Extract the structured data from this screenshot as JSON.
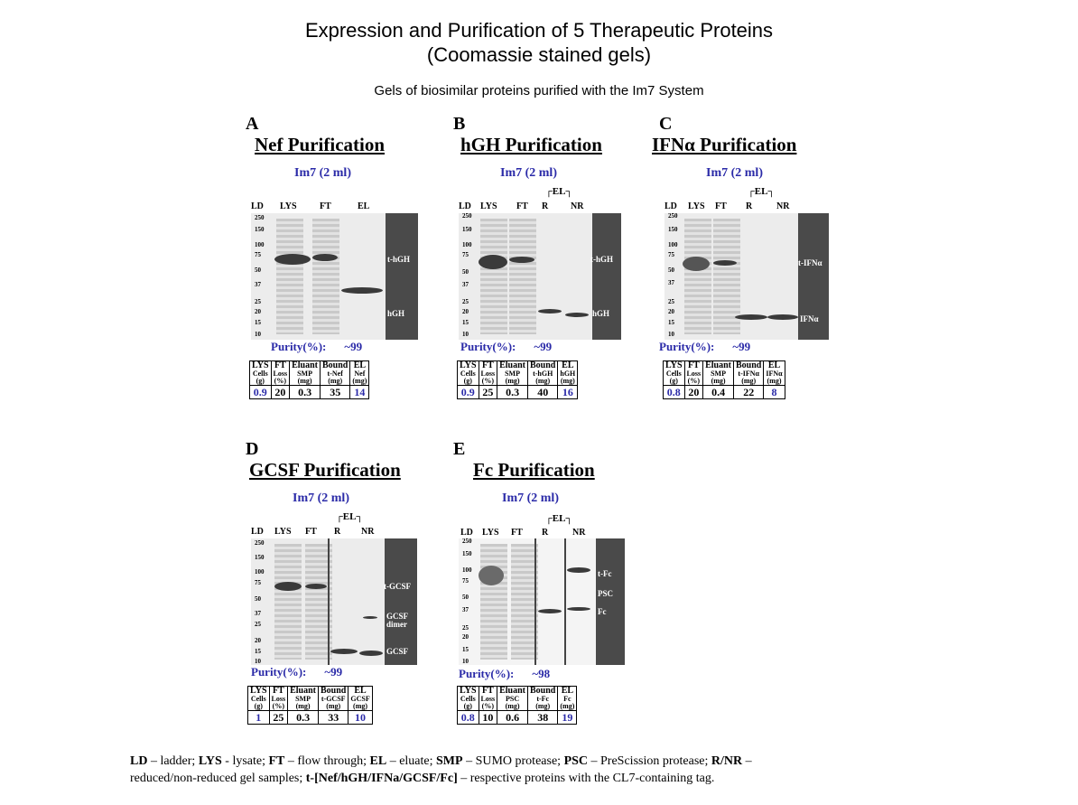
{
  "title": {
    "line1": "Expression and Purification of 5 Therapeutic Proteins",
    "line2": "(Coomassie stained gels)"
  },
  "subtitle": "Gels of biosimilar proteins purified with the Im7 System",
  "panels": [
    {
      "letter": "A",
      "title": "Nef Purification",
      "column": "Im7 (2 ml)",
      "lanes": [
        "LD",
        "LYS",
        "FT",
        "EL"
      ],
      "markers": [
        "250",
        "150",
        "100",
        "75",
        "50",
        "37",
        "25",
        "20",
        "15",
        "10"
      ],
      "band_labels": [
        "t-hGH",
        "hGH"
      ],
      "purity_label": "Purity(%):",
      "purity_value": "~99",
      "table": {
        "headers": [
          [
            "LYS",
            "Cells",
            "(g)"
          ],
          [
            "FT",
            "Loss",
            "(%)"
          ],
          [
            "Eluant",
            "SMP",
            "(mg)"
          ],
          [
            "Bound",
            "t-Nef",
            "(mg)"
          ],
          [
            "EL",
            "Nef",
            "(mg)"
          ]
        ],
        "values": [
          "0.9",
          "20",
          "0.3",
          "35",
          "14"
        ]
      }
    },
    {
      "letter": "B",
      "title": "hGH Purification",
      "column": "Im7 (2 ml)",
      "el_bracket": "┌EL┐",
      "lanes": [
        "LD",
        "LYS",
        "FT",
        "R",
        "NR"
      ],
      "markers": [
        "250",
        "150",
        "100",
        "75",
        "50",
        "37",
        "25",
        "20",
        "15",
        "10"
      ],
      "band_labels": [
        "t-hGH",
        "hGH"
      ],
      "purity_label": "Purity(%):",
      "purity_value": "~99",
      "table": {
        "headers": [
          [
            "LYS",
            "Cells",
            "(g)"
          ],
          [
            "FT",
            "Loss",
            "(%)"
          ],
          [
            "Eluant",
            "SMP",
            "(mg)"
          ],
          [
            "Bound",
            "t-hGH",
            "(mg)"
          ],
          [
            "EL",
            "hGH",
            "(mg)"
          ]
        ],
        "values": [
          "0.9",
          "25",
          "0.3",
          "40",
          "16"
        ]
      }
    },
    {
      "letter": "C",
      "title": "IFNα Purification",
      "column": "Im7 (2 ml)",
      "el_bracket": "┌EL┐",
      "lanes": [
        "LD",
        "LYS",
        "FT",
        "R",
        "NR"
      ],
      "markers": [
        "250",
        "150",
        "100",
        "75",
        "50",
        "37",
        "25",
        "20",
        "15",
        "10"
      ],
      "band_labels": [
        "t-IFNα",
        "IFNα"
      ],
      "purity_label": "Purity(%):",
      "purity_value": "~99",
      "table": {
        "headers": [
          [
            "LYS",
            "Cells",
            "(g)"
          ],
          [
            "FT",
            "Loss",
            "(%)"
          ],
          [
            "Eluant",
            "SMP",
            "(mg)"
          ],
          [
            "Bound",
            "t-IFNα",
            "(mg)"
          ],
          [
            "EL",
            "IFNα",
            "(mg)"
          ]
        ],
        "values": [
          "0.8",
          "20",
          "0.4",
          "22",
          "8"
        ]
      }
    },
    {
      "letter": "D",
      "title": "GCSF Purification",
      "column": "Im7 (2 ml)",
      "el_bracket": "┌EL┐",
      "lanes": [
        "LD",
        "LYS",
        "FT",
        "R",
        "NR"
      ],
      "markers": [
        "250",
        "150",
        "100",
        "75",
        "50",
        "37",
        "25",
        "20",
        "15",
        "10"
      ],
      "band_labels": [
        "t-GCSF",
        "GCSF dimer",
        "GCSF"
      ],
      "purity_label": "Purity(%):",
      "purity_value": "~99",
      "table": {
        "headers": [
          [
            "LYS",
            "Cells",
            "(g)"
          ],
          [
            "FT",
            "Loss",
            "(%)"
          ],
          [
            "Eluant",
            "SMP",
            "(mg)"
          ],
          [
            "Bound",
            "t-GCSF",
            "(mg)"
          ],
          [
            "EL",
            "GCSF",
            "(mg)"
          ]
        ],
        "values": [
          "1",
          "25",
          "0.3",
          "33",
          "10"
        ]
      }
    },
    {
      "letter": "E",
      "title": "Fc Purification",
      "column": "Im7 (2 ml)",
      "el_bracket": "┌EL┐",
      "lanes": [
        "LD",
        "LYS",
        "FT",
        "R",
        "NR"
      ],
      "markers": [
        "250",
        "150",
        "100",
        "75",
        "50",
        "37",
        "25",
        "20",
        "15",
        "10"
      ],
      "band_labels": [
        "t-Fc",
        "PSC",
        "Fc"
      ],
      "purity_label": "Purity(%):",
      "purity_value": "~98",
      "table": {
        "headers": [
          [
            "LYS",
            "Cells",
            "(g)"
          ],
          [
            "FT",
            "Loss",
            "(%)"
          ],
          [
            "Eluant",
            "PSC",
            "(mg)"
          ],
          [
            "Bound",
            "t-Fc",
            "(mg)"
          ],
          [
            "EL",
            "Fc",
            "(mg)"
          ]
        ],
        "values": [
          "0.8",
          "10",
          "0.6",
          "38",
          "19"
        ]
      }
    }
  ],
  "footnote": {
    "line1_parts": [
      {
        "b": "LD"
      },
      {
        "t": " – ladder; "
      },
      {
        "b": "LYS"
      },
      {
        "t": " - lysate; "
      },
      {
        "b": "FT"
      },
      {
        "t": " – flow through; "
      },
      {
        "b": "EL"
      },
      {
        "t": " – eluate; "
      },
      {
        "b": "SMP"
      },
      {
        "t": " – SUMO protease; "
      },
      {
        "b": "PSC"
      },
      {
        "t": " – PreScission protease; "
      },
      {
        "b": "R/NR"
      },
      {
        "t": " –"
      }
    ],
    "line2_parts": [
      {
        "t": "reduced/non-reduced gel samples; "
      },
      {
        "b": "t-[Nef/hGH/IFNa/GCSF/Fc]"
      },
      {
        "t": " – respective proteins with the CL7-containing tag."
      }
    ]
  },
  "colors": {
    "accent_blue": "#2a2aa8",
    "gel_dark": "#4a4a4a"
  }
}
